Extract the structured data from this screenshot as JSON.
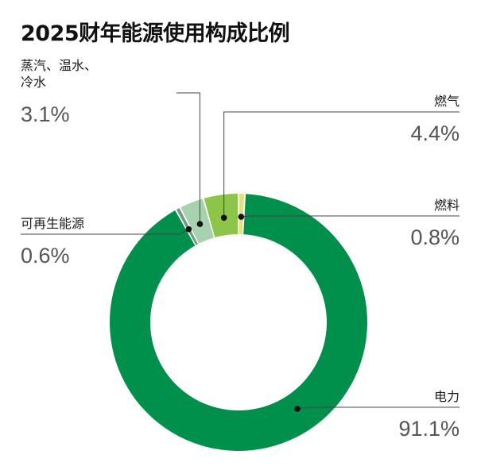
{
  "title": "2025财年能源使用构成比例",
  "chart_data": {
    "type": "pie",
    "title": "2025财年能源使用构成比例",
    "slices": [
      {
        "name": "燃料",
        "label_lines": [
          "燃料"
        ],
        "value": 0.8,
        "display": "0.8%",
        "color": "#e3e17b"
      },
      {
        "name": "电力",
        "label_lines": [
          "电力"
        ],
        "value": 91.1,
        "display": "91.1%",
        "color": "#00904b"
      },
      {
        "name": "可再生能源",
        "label_lines": [
          "可再生能源"
        ],
        "value": 0.6,
        "display": "0.6%",
        "color": "#6e9a84"
      },
      {
        "name": "蒸汽、温水、冷水",
        "label_lines": [
          "蒸汽、温水、",
          "冷水"
        ],
        "value": 3.1,
        "display": "3.1%",
        "color": "#a8d2ae"
      },
      {
        "name": "燃气",
        "label_lines": [
          "燃气"
        ],
        "value": 4.4,
        "display": "4.4%",
        "color": "#8cc54a"
      }
    ]
  }
}
